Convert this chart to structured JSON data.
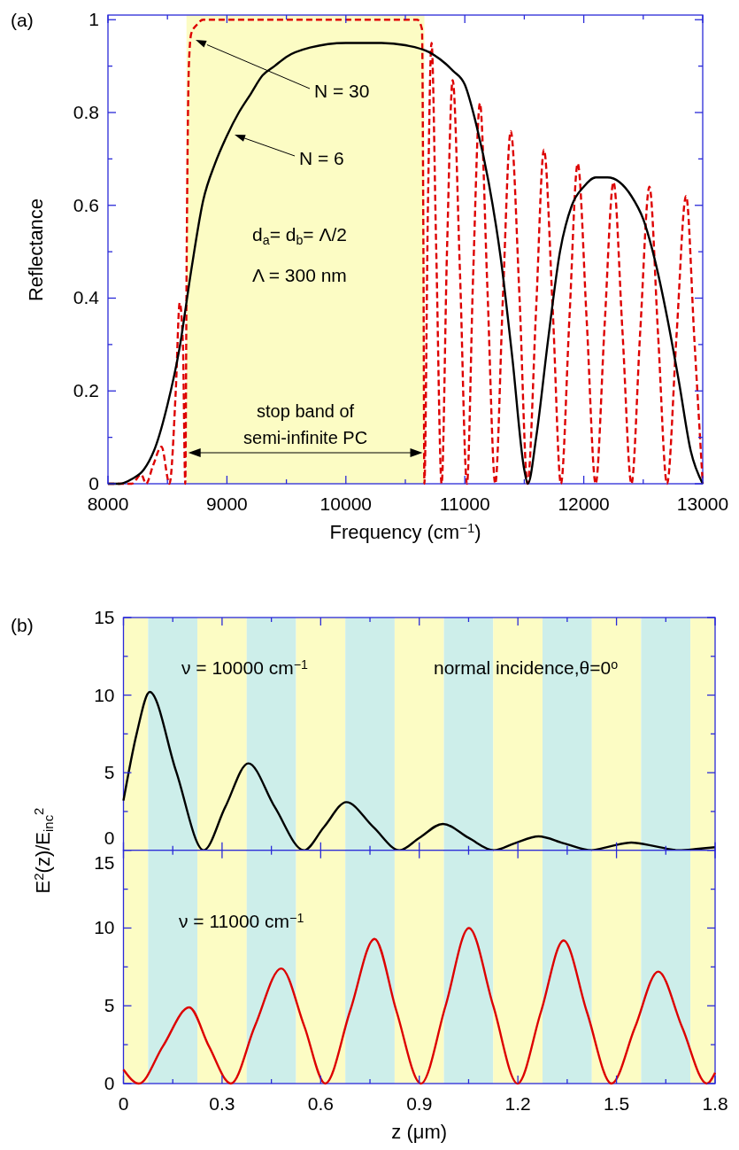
{
  "chart_data": [
    {
      "type": "line",
      "xlabel": "Frequency (cm$^{−1}$)",
      "ylabel": "Reflectance",
      "xlim": [
        8000,
        13000
      ],
      "ylim": [
        0,
        1.01
      ],
      "xticks": [
        8000,
        {
          "value": 8500,
          "label": null
        },
        9000,
        {
          "value": 9500,
          "label": null
        },
        10000,
        {
          "value": 10500,
          "label": null
        },
        11000,
        {
          "value": 11500,
          "label": null
        },
        12000,
        {
          "value": 12500,
          "label": null
        },
        13000
      ],
      "yticks": [
        0,
        {
          "value": 0.1,
          "label": null
        },
        0.2,
        {
          "value": 0.3,
          "label": null
        },
        0.4,
        {
          "value": 0.5,
          "label": null
        },
        0.6,
        {
          "value": 0.7,
          "label": null
        },
        0.8,
        {
          "value": 0.9,
          "label": null
        },
        1
      ],
      "bands": [
        {
          "axis": "x",
          "from": 8660,
          "to": 10660,
          "label": "stop band of semi-infinite PC",
          "color": "#fcfcc4"
        }
      ],
      "annotations": [
        "(a)",
        "N = 30",
        "N = 6",
        "d$_{a}$= d$_{b}$= Λ/2",
        "Λ = 300 nm"
      ],
      "series": [
        {
          "color": "#dd0000",
          "line_style": "dashed",
          "x": [
            8000,
            8200,
            8280,
            8320,
            8380,
            8450,
            8517,
            8570,
            8603,
            8630,
            8650,
            8662,
            8680,
            8700,
            8750,
            8800,
            10600,
            10640,
            10652,
            10660,
            10690,
            10720,
            10760,
            10805,
            10850,
            10898,
            10960,
            11018,
            11070,
            11127,
            11190,
            11256,
            11320,
            11386,
            11460,
            11527,
            11600,
            11665,
            11740,
            11808,
            11880,
            11949,
            12025,
            12100,
            12175,
            12250,
            12325,
            12401,
            12475,
            12552,
            12625,
            12700,
            12780,
            12860,
            12930,
            13000
          ],
          "values": [
            0,
            0,
            0.02,
            0,
            0.04,
            0.08,
            0,
            0.2,
            0.39,
            0.3,
            0,
            0.5,
            0.9,
            0.97,
            0.99,
            1,
            1,
            0.98,
            0.5,
            0,
            0.6,
            0.95,
            0.5,
            0,
            0.5,
            0.87,
            0.45,
            0,
            0.45,
            0.82,
            0.42,
            0,
            0.4,
            0.76,
            0.4,
            0,
            0.38,
            0.72,
            0.37,
            0,
            0.36,
            0.69,
            0.35,
            0,
            0.34,
            0.65,
            0.33,
            0,
            0.33,
            0.64,
            0.32,
            0,
            0.32,
            0.62,
            0.31,
            0
          ]
        },
        {
          "color": "#000000",
          "line_style": "solid",
          "x": [
            8000,
            8100,
            8200,
            8300,
            8400,
            8500,
            8600,
            8700,
            8800,
            8900,
            9000,
            9100,
            9200,
            9300,
            9400,
            9500,
            9700,
            10000,
            10300,
            10500,
            10700,
            10900,
            11000,
            11100,
            11200,
            11300,
            11400,
            11500,
            11530,
            11600,
            11700,
            11800,
            11900,
            12000,
            12100,
            12200,
            12300,
            12400,
            12500,
            12600,
            12700,
            12800,
            12900,
            13000
          ],
          "values": [
            0,
            0,
            0.01,
            0.03,
            0.08,
            0.17,
            0.29,
            0.46,
            0.61,
            0.69,
            0.75,
            0.8,
            0.84,
            0.88,
            0.9,
            0.92,
            0.94,
            0.95,
            0.95,
            0.945,
            0.93,
            0.89,
            0.86,
            0.77,
            0.65,
            0.49,
            0.27,
            0.03,
            0,
            0.1,
            0.31,
            0.5,
            0.6,
            0.64,
            0.66,
            0.66,
            0.65,
            0.62,
            0.57,
            0.48,
            0.36,
            0.22,
            0.07,
            0
          ]
        }
      ]
    },
    {
      "type": "line",
      "ylabel": "E$^{2}$(z)/E$_{inc}$$^{2}$",
      "xlim": [
        0,
        1.8
      ],
      "ylim": [
        0,
        15
      ],
      "tick_labels": "y",
      "xticks": [
        0,
        {
          "value": 0.15,
          "label": null
        },
        0.3,
        {
          "value": 0.45,
          "label": null
        },
        0.6,
        {
          "value": 0.75,
          "label": null
        },
        0.9,
        {
          "value": 1.05,
          "label": null
        },
        1.2,
        {
          "value": 1.35,
          "label": null
        },
        1.5,
        {
          "value": 1.65,
          "label": null
        },
        1.8
      ],
      "yticks": [
        0,
        {
          "value": 2.5,
          "label": null
        },
        5,
        {
          "value": 7.5,
          "label": null
        },
        10,
        {
          "value": 12.5,
          "label": null
        },
        15
      ],
      "bands": [
        {
          "axis": "x",
          "from": 0,
          "to": 0.075,
          "color": "#fcfcc4"
        },
        {
          "axis": "x",
          "from": 0.075,
          "to": 0.225,
          "color": "#cdeeea"
        },
        {
          "axis": "x",
          "from": 0.225,
          "to": 0.375,
          "color": "#fcfcc4"
        },
        {
          "axis": "x",
          "from": 0.375,
          "to": 0.525,
          "color": "#cdeeea"
        },
        {
          "axis": "x",
          "from": 0.525,
          "to": 0.675,
          "color": "#fcfcc4"
        },
        {
          "axis": "x",
          "from": 0.675,
          "to": 0.825,
          "color": "#cdeeea"
        },
        {
          "axis": "x",
          "from": 0.825,
          "to": 0.975,
          "color": "#fcfcc4"
        },
        {
          "axis": "x",
          "from": 0.975,
          "to": 1.125,
          "color": "#cdeeea"
        },
        {
          "axis": "x",
          "from": 1.125,
          "to": 1.275,
          "color": "#fcfcc4"
        },
        {
          "axis": "x",
          "from": 1.275,
          "to": 1.425,
          "color": "#cdeeea"
        },
        {
          "axis": "x",
          "from": 1.425,
          "to": 1.575,
          "color": "#fcfcc4"
        },
        {
          "axis": "x",
          "from": 1.575,
          "to": 1.725,
          "color": "#cdeeea"
        },
        {
          "axis": "x",
          "from": 1.725,
          "to": 1.8,
          "color": "#fcfcc4"
        }
      ],
      "annotations": [
        "(b)",
        "ν = 10000 cm$^{−1}$",
        "normal incidence,θ=0$^{o}$"
      ],
      "series": [
        {
          "color": "#000000",
          "line_style": "solid",
          "x": [
            0,
            0.04,
            0.08,
            0.16,
            0.244,
            0.31,
            0.38,
            0.46,
            0.549,
            0.61,
            0.678,
            0.76,
            0.84,
            0.9,
            0.972,
            1.05,
            1.127,
            1.19,
            1.263,
            1.34,
            1.424,
            1.48,
            1.545,
            1.62,
            1.689,
            1.75,
            1.8
          ],
          "values": [
            3.2,
            7.5,
            10.2,
            5.1,
            0,
            2.8,
            5.6,
            2.8,
            0,
            1.5,
            3.1,
            1.5,
            0,
            0.8,
            1.7,
            0.8,
            0,
            0.45,
            0.9,
            0.45,
            0,
            0.25,
            0.5,
            0.25,
            0,
            0.1,
            0.2
          ]
        }
      ]
    },
    {
      "type": "line",
      "xlabel": "z (μm)",
      "xlim": [
        0,
        1.8
      ],
      "ylim": [
        0,
        15
      ],
      "xticks": [
        0,
        {
          "value": 0.15,
          "label": null
        },
        0.3,
        {
          "value": 0.45,
          "label": null
        },
        0.6,
        {
          "value": 0.75,
          "label": null
        },
        0.9,
        {
          "value": 1.05,
          "label": null
        },
        1.2,
        {
          "value": 1.35,
          "label": null
        },
        1.5,
        {
          "value": 1.65,
          "label": null
        },
        1.8
      ],
      "yticks": [
        0,
        {
          "value": 2.5,
          "label": null
        },
        5,
        {
          "value": 7.5,
          "label": null
        },
        10,
        {
          "value": 12.5,
          "label": null
        },
        15
      ],
      "bands": [
        {
          "axis": "x",
          "from": 0,
          "to": 0.075,
          "color": "#fcfcc4"
        },
        {
          "axis": "x",
          "from": 0.075,
          "to": 0.225,
          "color": "#cdeeea"
        },
        {
          "axis": "x",
          "from": 0.225,
          "to": 0.375,
          "color": "#fcfcc4"
        },
        {
          "axis": "x",
          "from": 0.375,
          "to": 0.525,
          "color": "#cdeeea"
        },
        {
          "axis": "x",
          "from": 0.525,
          "to": 0.675,
          "color": "#fcfcc4"
        },
        {
          "axis": "x",
          "from": 0.675,
          "to": 0.825,
          "color": "#cdeeea"
        },
        {
          "axis": "x",
          "from": 0.825,
          "to": 0.975,
          "color": "#fcfcc4"
        },
        {
          "axis": "x",
          "from": 0.975,
          "to": 1.125,
          "color": "#cdeeea"
        },
        {
          "axis": "x",
          "from": 1.125,
          "to": 1.275,
          "color": "#fcfcc4"
        },
        {
          "axis": "x",
          "from": 1.275,
          "to": 1.425,
          "color": "#cdeeea"
        },
        {
          "axis": "x",
          "from": 1.425,
          "to": 1.575,
          "color": "#fcfcc4"
        },
        {
          "axis": "x",
          "from": 1.575,
          "to": 1.725,
          "color": "#cdeeea"
        },
        {
          "axis": "x",
          "from": 1.725,
          "to": 1.8,
          "color": "#fcfcc4"
        }
      ],
      "annotations": [
        "ν = 11000 cm$^{−1}$"
      ],
      "series": [
        {
          "color": "#dd0000",
          "line_style": "solid",
          "x": [
            0,
            0.047,
            0.12,
            0.2,
            0.26,
            0.327,
            0.4,
            0.48,
            0.55,
            0.614,
            0.69,
            0.764,
            0.83,
            0.905,
            0.98,
            1.051,
            1.125,
            1.199,
            1.27,
            1.339,
            1.41,
            1.485,
            1.556,
            1.627,
            1.7,
            1.775,
            1.8
          ],
          "values": [
            0.9,
            0,
            2.4,
            4.9,
            2.4,
            0,
            3.7,
            7.4,
            3.7,
            0,
            4.7,
            9.3,
            4.7,
            0,
            5,
            10,
            5,
            0,
            4.6,
            9.2,
            4.6,
            0,
            3.6,
            7.2,
            3.6,
            0,
            0.7
          ]
        }
      ]
    }
  ]
}
